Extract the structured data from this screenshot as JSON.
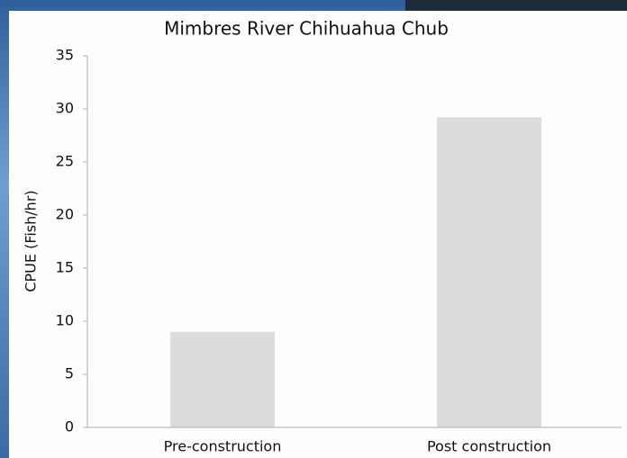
{
  "chart_data": {
    "type": "bar",
    "title": "Mimbres River Chihuahua Chub",
    "y_label": "CPUE (Fish/hr)",
    "categories": [
      "Pre-construction",
      "Post construction"
    ],
    "values": [
      9,
      29.2
    ],
    "color": "#dcdcdc",
    "ylim": [
      0,
      35
    ],
    "yticks": [
      0,
      5,
      10,
      15,
      20,
      25,
      30,
      35
    ],
    "grid": false
  }
}
